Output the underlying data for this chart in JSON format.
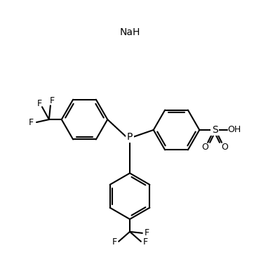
{
  "background_color": "#ffffff",
  "line_color": "#000000",
  "line_width": 1.5,
  "font_size": 9,
  "title": "",
  "NaH_label": "NaH",
  "P_label": "P",
  "S_label": "S",
  "O_labels": [
    "O",
    "O",
    "OH"
  ],
  "F_labels_top": [
    "F",
    "F",
    "F"
  ],
  "F_labels_bottom": [
    "F",
    "F",
    "F"
  ]
}
